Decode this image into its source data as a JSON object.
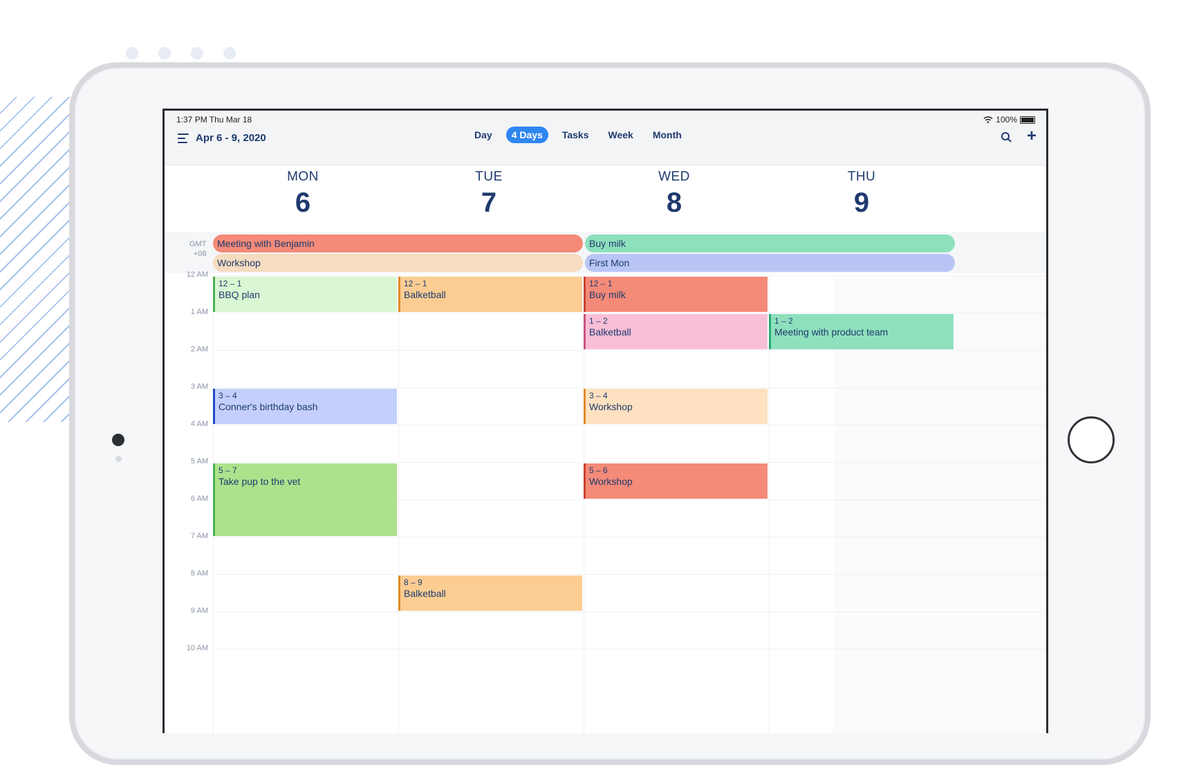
{
  "status": {
    "time": "1:37 PM   Thu Mar 18",
    "battery": "100%"
  },
  "header": {
    "range": "Apr 6 - 9, 2020"
  },
  "tabs": [
    "Day",
    "4 Days",
    "Tasks",
    "Week",
    "Month"
  ],
  "active_tab": "4 Days",
  "timezone": {
    "line1": "GMT",
    "line2": "+08"
  },
  "days": [
    {
      "name": "MON",
      "date": "6"
    },
    {
      "name": "TUE",
      "date": "7"
    },
    {
      "name": "WED",
      "date": "8"
    },
    {
      "name": "THU",
      "date": "9"
    }
  ],
  "all_day_events": [
    {
      "title": "Meeting with Benjamin",
      "color": "#f48a78"
    },
    {
      "title": "Workshop",
      "color": "#f6dcc0"
    },
    {
      "title": "Buy milk",
      "color": "#8ee0bd"
    },
    {
      "title": "First Mon",
      "color": "#b9c6f5"
    }
  ],
  "hours": [
    "12 AM",
    "1 AM",
    "2 AM",
    "3 AM",
    "4 AM",
    "5 AM",
    "6 AM",
    "7 AM",
    "8 AM",
    "9 AM",
    "10 AM"
  ],
  "events": [
    {
      "day": "MON",
      "time": "12 – 1",
      "title": "BBQ plan",
      "bg": "#d8f7d2",
      "bar": "#4caf50"
    },
    {
      "day": "MON",
      "time": "3 – 4",
      "title": "Conner's birthday bash",
      "bg": "#c4d0fb",
      "bar": "#2447c7"
    },
    {
      "day": "MON",
      "time": "5 – 7",
      "title": "Take pup to the vet",
      "bg": "#ade28d",
      "bar": "#4caf50"
    },
    {
      "day": "TUE",
      "time": "12 – 1",
      "title": "Balketball",
      "bg": "#fbcd93",
      "bar": "#e08a27"
    },
    {
      "day": "TUE",
      "time": "8 – 9",
      "title": "Balketball",
      "bg": "#fbcd93",
      "bar": "#e08a27"
    },
    {
      "day": "WED",
      "time": "12 – 1",
      "title": "Buy milk",
      "bg": "#f48a78",
      "bar": "#c9412f"
    },
    {
      "day": "WED",
      "time": "1 – 2",
      "title": "Balketball",
      "bg": "#f8bfd6",
      "bar": "#c8557f"
    },
    {
      "day": "WED",
      "time": "3 – 4",
      "title": "Workshop",
      "bg": "#fde1c0",
      "bar": "#e08a27"
    },
    {
      "day": "WED",
      "time": "5 – 6",
      "title": "Workshop",
      "bg": "#f48a78",
      "bar": "#c9412f"
    },
    {
      "day": "THU",
      "time": "1 – 2",
      "title": "Meeting with product team",
      "bg": "#8ee0bd",
      "bar": "#2aa872"
    }
  ]
}
